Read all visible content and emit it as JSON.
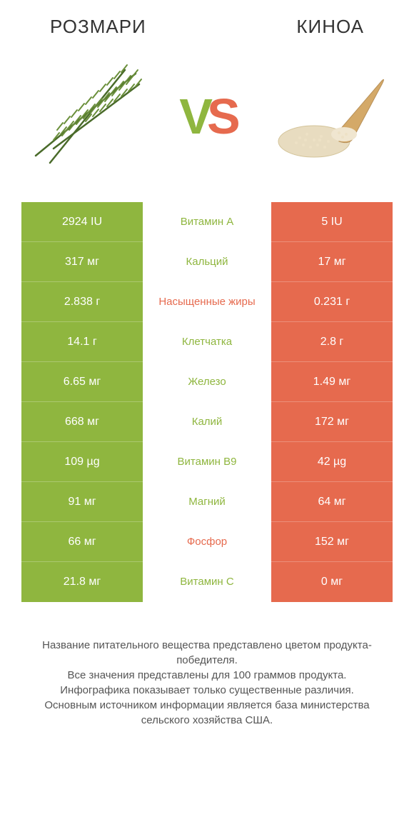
{
  "header": {
    "left_title": "РОЗМАРИ",
    "right_title": "КИНОА",
    "vs_v": "V",
    "vs_s": "S"
  },
  "colors": {
    "green": "#8fb63f",
    "orange": "#e66a4e",
    "background": "#ffffff",
    "text": "#333333",
    "footnote": "#555555"
  },
  "table": {
    "left_bg": "#8fb63f",
    "right_bg": "#e66a4e",
    "rows": [
      {
        "left": "2924 IU",
        "label": "Витамин A",
        "winner": "green",
        "right": "5 IU"
      },
      {
        "left": "317 мг",
        "label": "Кальций",
        "winner": "green",
        "right": "17 мг"
      },
      {
        "left": "2.838 г",
        "label": "Насыщенные жиры",
        "winner": "orange",
        "right": "0.231 г"
      },
      {
        "left": "14.1 г",
        "label": "Клетчатка",
        "winner": "green",
        "right": "2.8 г"
      },
      {
        "left": "6.65 мг",
        "label": "Железо",
        "winner": "green",
        "right": "1.49 мг"
      },
      {
        "left": "668 мг",
        "label": "Калий",
        "winner": "green",
        "right": "172 мг"
      },
      {
        "left": "109 µg",
        "label": "Витамин B9",
        "winner": "green",
        "right": "42 µg"
      },
      {
        "left": "91 мг",
        "label": "Магний",
        "winner": "green",
        "right": "64 мг"
      },
      {
        "left": "66 мг",
        "label": "Фосфор",
        "winner": "orange",
        "right": "152 мг"
      },
      {
        "left": "21.8 мг",
        "label": "Витамин C",
        "winner": "green",
        "right": "0 мг"
      }
    ]
  },
  "footnote": {
    "line1": "Название питательного вещества представлено цветом продукта-победителя.",
    "line2": "Все значения представлены для 100 граммов продукта.",
    "line3": "Инфографика показывает только существенные различия.",
    "line4": "Основным источником информации является база министерства сельского хозяйства США."
  }
}
